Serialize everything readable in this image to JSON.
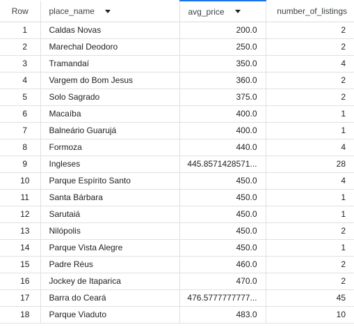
{
  "table": {
    "columns": [
      {
        "label": "Row",
        "icon": null
      },
      {
        "label": "place_name",
        "icon": "sort-arrow-down-icon"
      },
      {
        "label": "avg_price",
        "icon": "sort-arrow-down-icon"
      },
      {
        "label": "number_of_listings",
        "icon": null
      }
    ],
    "rows": [
      {
        "row": "1",
        "place_name": "Caldas Novas",
        "avg_price": "200.0",
        "number_of_listings": "2"
      },
      {
        "row": "2",
        "place_name": "Marechal Deodoro",
        "avg_price": "250.0",
        "number_of_listings": "2"
      },
      {
        "row": "3",
        "place_name": "Tramandaí",
        "avg_price": "350.0",
        "number_of_listings": "4"
      },
      {
        "row": "4",
        "place_name": "Vargem do Bom Jesus",
        "avg_price": "360.0",
        "number_of_listings": "2"
      },
      {
        "row": "5",
        "place_name": "Solo Sagrado",
        "avg_price": "375.0",
        "number_of_listings": "2"
      },
      {
        "row": "6",
        "place_name": "Macaíba",
        "avg_price": "400.0",
        "number_of_listings": "1"
      },
      {
        "row": "7",
        "place_name": "Balneário Guarujá",
        "avg_price": "400.0",
        "number_of_listings": "1"
      },
      {
        "row": "8",
        "place_name": "Formoza",
        "avg_price": "440.0",
        "number_of_listings": "4"
      },
      {
        "row": "9",
        "place_name": "Ingleses",
        "avg_price": "445.8571428571...",
        "number_of_listings": "28"
      },
      {
        "row": "10",
        "place_name": "Parque Espírito Santo",
        "avg_price": "450.0",
        "number_of_listings": "4"
      },
      {
        "row": "11",
        "place_name": "Santa Bárbara",
        "avg_price": "450.0",
        "number_of_listings": "1"
      },
      {
        "row": "12",
        "place_name": "Sarutaiá",
        "avg_price": "450.0",
        "number_of_listings": "1"
      },
      {
        "row": "13",
        "place_name": "Nilópolis",
        "avg_price": "450.0",
        "number_of_listings": "2"
      },
      {
        "row": "14",
        "place_name": "Parque Vista Alegre",
        "avg_price": "450.0",
        "number_of_listings": "1"
      },
      {
        "row": "15",
        "place_name": "Padre Réus",
        "avg_price": "460.0",
        "number_of_listings": "2"
      },
      {
        "row": "16",
        "place_name": "Jockey de Itaparica",
        "avg_price": "470.0",
        "number_of_listings": "2"
      },
      {
        "row": "17",
        "place_name": "Barra do Ceará",
        "avg_price": "476.5777777777...",
        "number_of_listings": "45"
      },
      {
        "row": "18",
        "place_name": "Parque Viaduto",
        "avg_price": "483.0",
        "number_of_listings": "10"
      }
    ]
  }
}
